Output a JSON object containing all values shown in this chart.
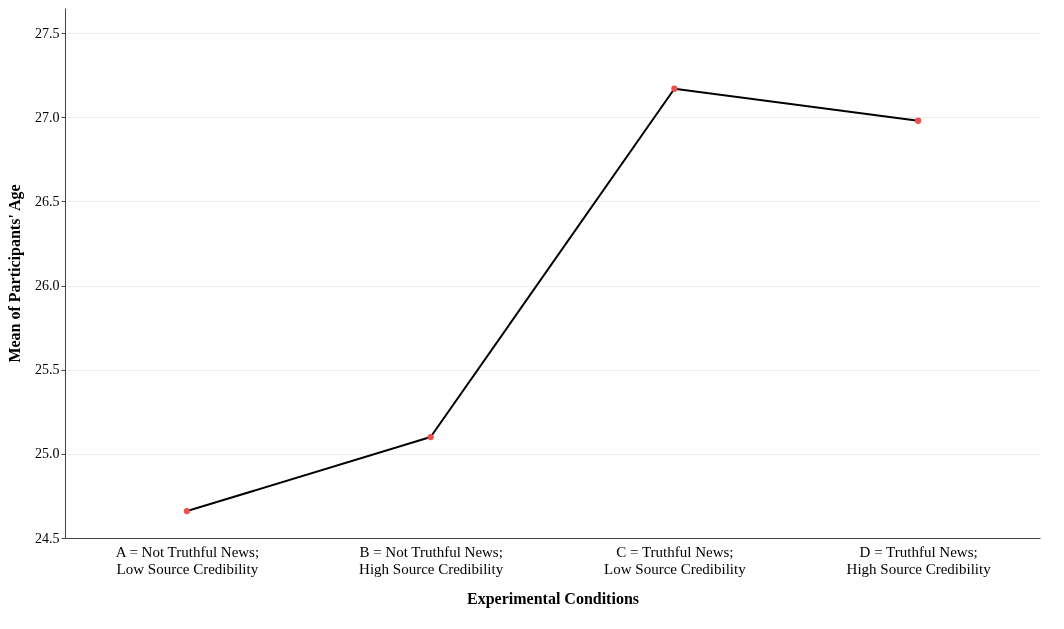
{
  "chart_data": {
    "type": "line",
    "xlabel": "Experimental Conditions",
    "ylabel": "Mean of Participants' Age",
    "categories": [
      "A = Not Truthful News;\nLow Source Credibility",
      "B = Not Truthful News;\nHigh Source Credibility",
      "C = Truthful News;\nLow Source Credibility",
      "D = Truthful News;\nHigh Source Credibility"
    ],
    "series": [
      {
        "color": "#000000",
        "values": [
          24.66,
          25.1,
          27.17,
          26.98
        ]
      },
      {
        "type": "scatter",
        "color": "#e8514f",
        "values": [
          24.66,
          25.1,
          27.17,
          26.98
        ]
      }
    ],
    "ylim": [
      24.5,
      27.65
    ],
    "yticks": [
      {
        "value": 24.5,
        "label": "24.5"
      },
      {
        "value": 25,
        "label": "25.0"
      },
      {
        "value": 25.5,
        "label": "25.5"
      },
      {
        "value": 26,
        "label": "26.0"
      },
      {
        "value": 26.5,
        "label": "26.5"
      },
      {
        "value": 27,
        "label": "27.0"
      },
      {
        "value": 27.5,
        "label": "27.5"
      }
    ],
    "grid": "y",
    "line_style": "solid"
  }
}
